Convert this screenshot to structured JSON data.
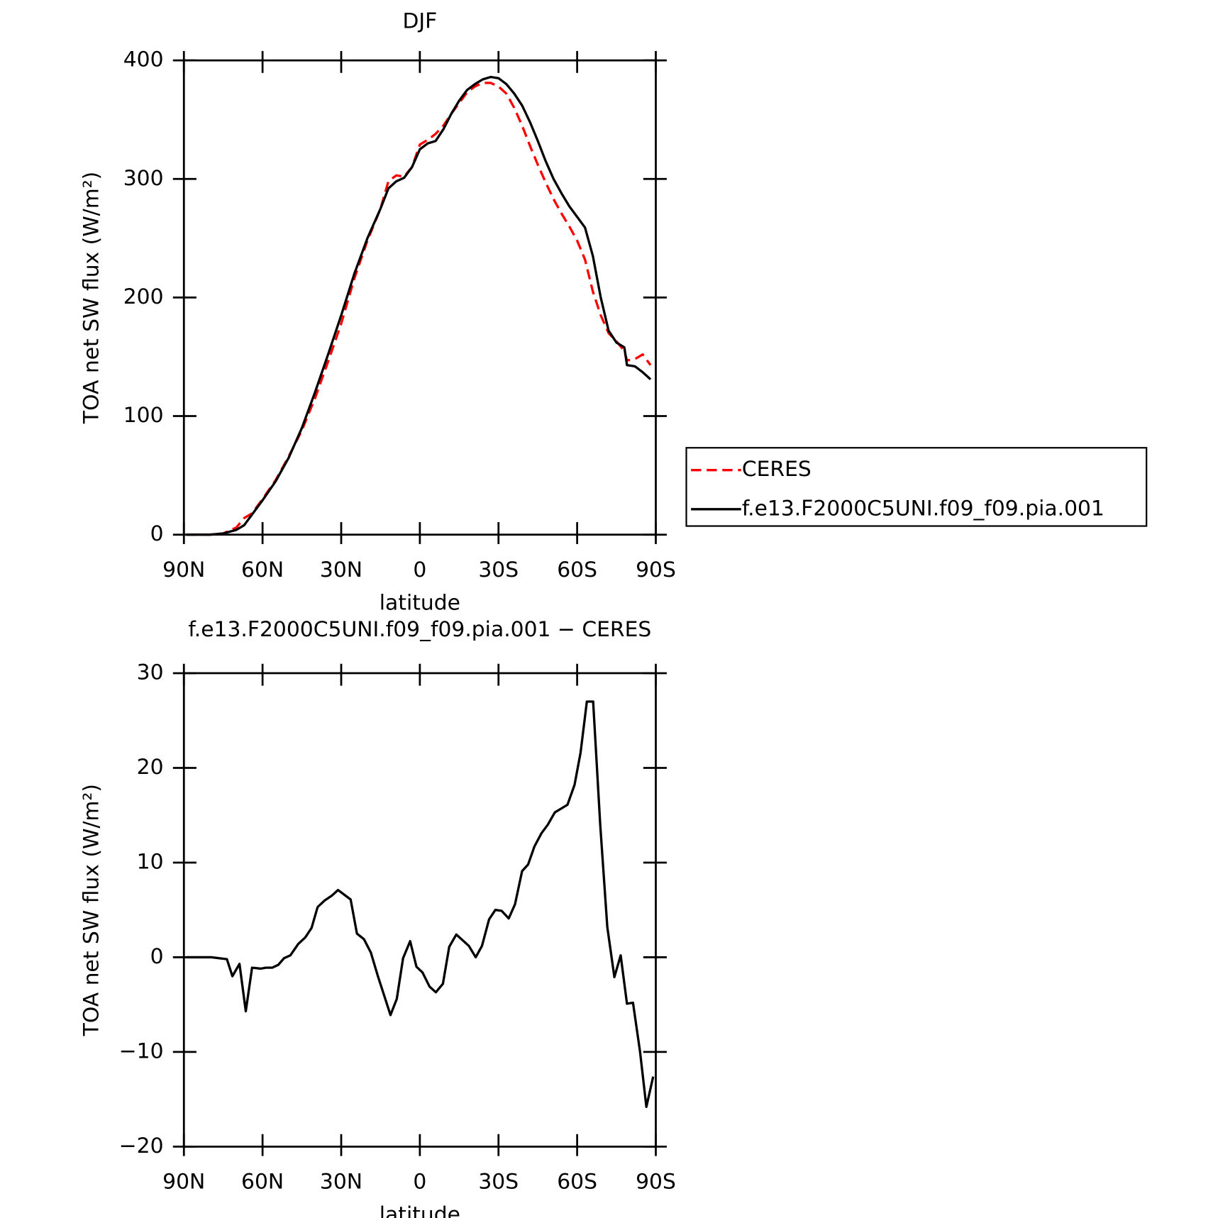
{
  "chart_data": [
    {
      "type": "line",
      "title": "DJF",
      "xlabel": "latitude",
      "ylabel": "TOA net SW flux (W/m²)",
      "x": [
        89,
        80,
        75,
        70,
        67,
        64,
        60,
        55,
        50,
        45,
        40,
        35,
        30,
        25,
        20,
        15,
        12,
        9,
        6,
        3,
        0,
        -3,
        -6,
        -9,
        -12,
        -15,
        -18,
        -21,
        -24,
        -27,
        -30,
        -33,
        -36,
        -39,
        -42,
        -45,
        -48,
        -51,
        -54,
        -57,
        -60,
        -63,
        -66,
        -69,
        -72,
        -75,
        -78,
        -79,
        -82,
        -85,
        -88
      ],
      "series": [
        {
          "name": "CERES",
          "color": "#ff0000",
          "dash": true,
          "values": [
            0,
            0,
            1,
            6,
            14,
            18,
            30,
            46,
            66,
            88,
            115,
            146,
            178,
            216,
            248,
            275,
            298,
            303,
            302,
            310,
            329,
            333,
            338,
            345,
            355,
            364,
            373,
            378,
            381,
            381,
            378,
            372,
            360,
            345,
            328,
            312,
            297,
            283,
            271,
            260,
            248,
            232,
            205,
            185,
            170,
            163,
            155,
            147,
            148,
            152,
            143
          ]
        },
        {
          "name": "f.e13.F2000C5UNI.f09_f09.pia.001",
          "color": "#000000",
          "dash": false,
          "values": [
            0,
            0,
            1,
            4,
            8,
            17,
            29,
            45,
            65,
            90,
            120,
            152,
            185,
            220,
            250,
            275,
            292,
            298,
            301,
            310,
            325,
            330,
            332,
            342,
            355,
            366,
            375,
            380,
            384,
            386,
            385,
            380,
            372,
            362,
            348,
            332,
            315,
            300,
            288,
            277,
            268,
            259,
            235,
            200,
            172,
            162,
            158,
            143,
            142,
            137,
            131
          ]
        }
      ],
      "xlim": [
        90,
        -90
      ],
      "xticks": [
        {
          "value": 90,
          "label": "90N"
        },
        {
          "value": 60,
          "label": "60N"
        },
        {
          "value": 30,
          "label": "30N"
        },
        0,
        {
          "value": -30,
          "label": "30S"
        },
        {
          "value": -60,
          "label": "60S"
        },
        {
          "value": -90,
          "label": "90S"
        }
      ],
      "ylim": [
        0,
        400
      ],
      "yticks": [
        0,
        100,
        200,
        300,
        400
      ],
      "legend": "right"
    },
    {
      "type": "line",
      "title": "f.e13.F2000C5UNI.f09_f09.pia.001 − CERES",
      "xlabel": "latitude",
      "ylabel": "TOA net SW flux (W/m²)",
      "x": [
        89,
        79.5,
        73.6,
        71.5,
        68.8,
        66.4,
        64,
        60.7,
        58.7,
        56.3,
        54,
        51.8,
        49.4,
        46.4,
        43.7,
        41.3,
        39,
        36.3,
        33.6,
        31.2,
        26.4,
        24,
        21.3,
        18.7,
        16,
        11.2,
        8.8,
        6.4,
        3.7,
        1.3,
        -1,
        -3.7,
        -6.1,
        -8.8,
        -11.2,
        -13.9,
        -18.7,
        -21.3,
        -23.7,
        -26.4,
        -28.8,
        -31.2,
        -33.9,
        -36.3,
        -39,
        -41.3,
        -43.7,
        -46.4,
        -48.8,
        -51.5,
        -56.3,
        -59,
        -61.3,
        -63.7,
        -66.1,
        -68.8,
        -71.5,
        -74.2,
        -76.6,
        -79,
        -81.3,
        -84,
        -86.4,
        -89
      ],
      "series": [
        {
          "name": "f.e13.F2000C5UNI.f09_f09.pia.001 − CERES",
          "color": "#000000",
          "dash": false,
          "values": [
            0,
            0,
            -0.2,
            -2,
            -0.7,
            -5.7,
            -1.1,
            -1.2,
            -1.1,
            -1.1,
            -0.8,
            -0.1,
            0.2,
            1.4,
            2.1,
            3.1,
            5.3,
            6,
            6.5,
            7.1,
            6.1,
            2.5,
            1.9,
            0.5,
            -2,
            -6.1,
            -4.4,
            -0.1,
            1.7,
            -1,
            -1.6,
            -3.1,
            -3.7,
            -2.8,
            1.1,
            2.4,
            1.2,
            0,
            1.2,
            4,
            5,
            4.9,
            4.1,
            5.6,
            9.1,
            9.8,
            11.7,
            13.1,
            14,
            15.3,
            16.1,
            18.2,
            21.6,
            27,
            27,
            14,
            3.2,
            -2.1,
            0.2,
            -4.9,
            -4.8,
            -10,
            -15.8,
            -12.6
          ]
        }
      ],
      "xlim": [
        90,
        -90
      ],
      "xticks": [
        {
          "value": 90,
          "label": "90N"
        },
        {
          "value": 60,
          "label": "60N"
        },
        {
          "value": 30,
          "label": "30N"
        },
        0,
        {
          "value": -30,
          "label": "30S"
        },
        {
          "value": -60,
          "label": "60S"
        },
        {
          "value": -90,
          "label": "90S"
        }
      ],
      "ylim": [
        -20,
        30
      ],
      "yticks": [
        {
          "value": -20,
          "label": "−20"
        },
        {
          "value": -10,
          "label": "−10"
        },
        0,
        10,
        20,
        30
      ]
    }
  ]
}
